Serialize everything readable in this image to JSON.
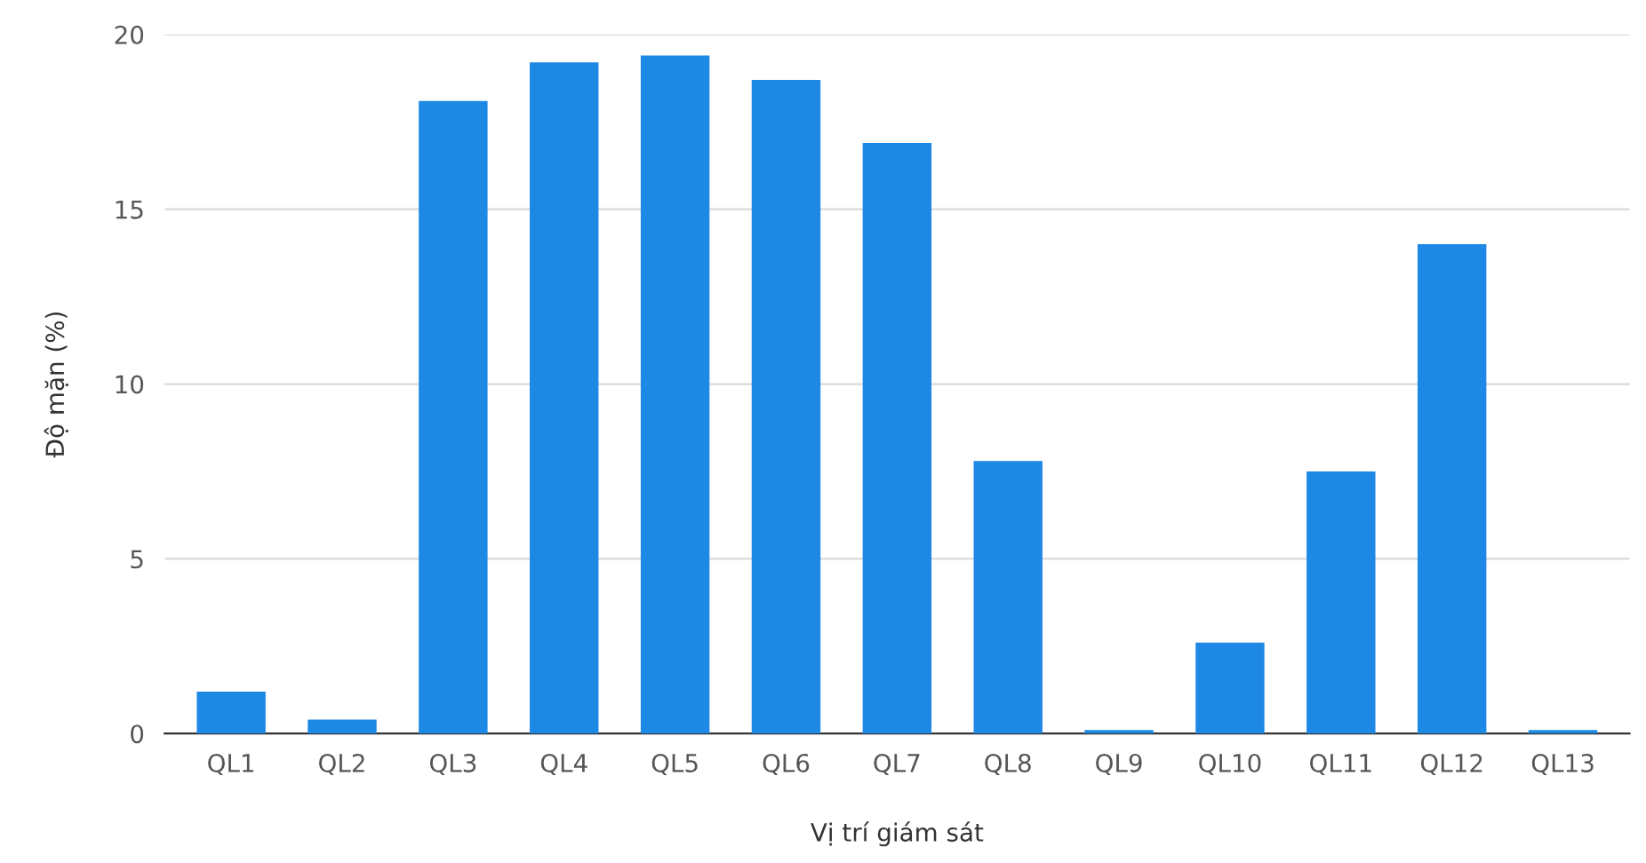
{
  "chart_data": {
    "type": "bar",
    "xlabel": "Vị trí giám sát",
    "ylabel": "Độ mặn (%)",
    "categories": [
      "QL1",
      "QL2",
      "QL3",
      "QL4",
      "QL5",
      "QL6",
      "QL7",
      "QL8",
      "QL9",
      "QL10",
      "QL11",
      "QL12",
      "QL13"
    ],
    "values": [
      1.2,
      0.4,
      18.1,
      19.2,
      19.4,
      18.7,
      16.9,
      7.8,
      0.1,
      2.6,
      7.5,
      14.0,
      0.1
    ],
    "color": "#1e88e5",
    "ylim": [
      0,
      20
    ],
    "yticks": [
      0,
      5,
      10,
      15,
      20
    ],
    "grid": "y"
  }
}
